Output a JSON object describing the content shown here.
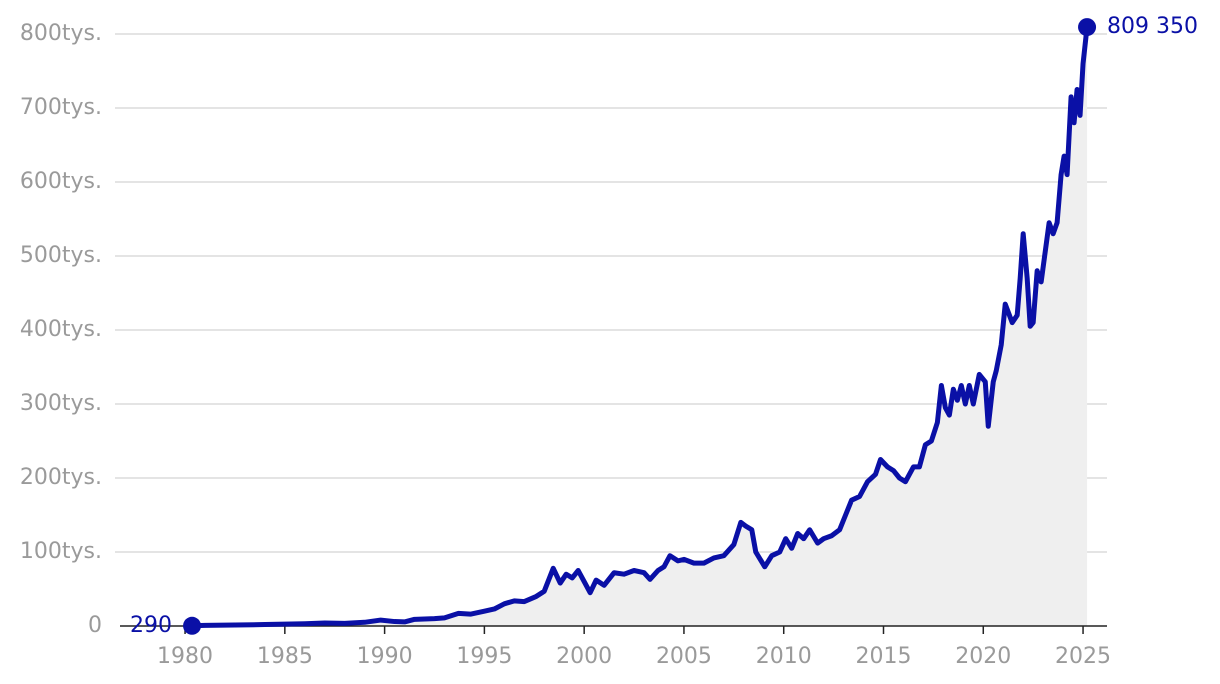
{
  "chart_data": {
    "type": "area-line",
    "color": "#0a10a6",
    "fill": "#efefef",
    "grid": true,
    "xlim": [
      1976.74,
      2026.2
    ],
    "ylim": [
      0,
      820000
    ],
    "xticks": [
      1980,
      1985,
      1990,
      1995,
      2000,
      2005,
      2010,
      2015,
      2020,
      2025
    ],
    "yticks": [
      0,
      {
        "value": 100000,
        "label": "100tys."
      },
      {
        "value": 200000,
        "label": "200tys."
      },
      {
        "value": 300000,
        "label": "300tys."
      },
      {
        "value": 400000,
        "label": "400tys."
      },
      {
        "value": 500000,
        "label": "500tys."
      },
      {
        "value": 600000,
        "label": "600tys."
      },
      {
        "value": 700000,
        "label": "700tys."
      },
      {
        "value": 800000,
        "label": "800tys."
      }
    ],
    "x": [
      1980.35,
      1981,
      1982,
      1983,
      1984,
      1985,
      1986,
      1987,
      1988,
      1989,
      1989.8,
      1990.5,
      1991,
      1991.5,
      1992.5,
      1993,
      1993.7,
      1994.3,
      1995,
      1995.5,
      1996,
      1996.5,
      1997,
      1997.6,
      1998,
      1998.45,
      1998.8,
      1999.1,
      1999.4,
      1999.7,
      2000,
      2000.3,
      2000.6,
      2001,
      2001.5,
      2002,
      2002.5,
      2003,
      2003.3,
      2003.7,
      2004,
      2004.3,
      2004.7,
      2005,
      2005.5,
      2006,
      2006.5,
      2007,
      2007.5,
      2007.85,
      2008.1,
      2008.4,
      2008.6,
      2009.05,
      2009.4,
      2009.8,
      2010.1,
      2010.4,
      2010.7,
      2011,
      2011.3,
      2011.7,
      2012,
      2012.4,
      2012.8,
      2013.1,
      2013.4,
      2013.8,
      2014.2,
      2014.6,
      2014.85,
      2015.2,
      2015.5,
      2015.8,
      2016.1,
      2016.5,
      2016.8,
      2017.1,
      2017.4,
      2017.7,
      2017.9,
      2018.1,
      2018.3,
      2018.5,
      2018.7,
      2018.9,
      2019.1,
      2019.3,
      2019.5,
      2019.8,
      2020.1,
      2020.25,
      2020.5,
      2020.65,
      2020.9,
      2021.1,
      2021.45,
      2021.7,
      2021.85,
      2022,
      2022.2,
      2022.35,
      2022.5,
      2022.7,
      2022.9,
      2023.1,
      2023.3,
      2023.5,
      2023.7,
      2023.9,
      2024.05,
      2024.2,
      2024.4,
      2024.55,
      2024.7,
      2024.85,
      2025,
      2025.2
    ],
    "values": [
      290,
      800,
      1200,
      1500,
      2000,
      2500,
      3000,
      4000,
      3500,
      5000,
      8000,
      6000,
      5500,
      9000,
      10000,
      11000,
      17000,
      16000,
      20000,
      23000,
      30000,
      34000,
      33000,
      40000,
      47000,
      78000,
      58000,
      70000,
      65000,
      75000,
      60000,
      45000,
      62000,
      55000,
      72000,
      70000,
      75000,
      72000,
      63000,
      75000,
      80000,
      95000,
      88000,
      90000,
      85000,
      85000,
      92000,
      95000,
      110000,
      140000,
      135000,
      130000,
      100000,
      80000,
      95000,
      100000,
      118000,
      105000,
      125000,
      118000,
      130000,
      112000,
      118000,
      122000,
      130000,
      150000,
      170000,
      175000,
      195000,
      205000,
      225000,
      215000,
      210000,
      200000,
      195000,
      215000,
      215000,
      245000,
      250000,
      275000,
      325000,
      295000,
      285000,
      320000,
      305000,
      325000,
      300000,
      325000,
      300000,
      340000,
      330000,
      270000,
      330000,
      345000,
      380000,
      435000,
      410000,
      420000,
      470000,
      530000,
      470000,
      405000,
      410000,
      480000,
      465000,
      505000,
      545000,
      530000,
      545000,
      610000,
      635000,
      610000,
      715000,
      680000,
      725000,
      690000,
      760000,
      809350
    ],
    "value_labels": [
      "290",
      null,
      null,
      null,
      null,
      null,
      null,
      null,
      null,
      null,
      null,
      null,
      null,
      null,
      null,
      null,
      null,
      null,
      null,
      null,
      null,
      null,
      null,
      null,
      null,
      null,
      null,
      null,
      null,
      null,
      null,
      null,
      null,
      null,
      null,
      null,
      null,
      null,
      null,
      null,
      null,
      null,
      null,
      null,
      null,
      null,
      null,
      null,
      null,
      null,
      null,
      null,
      null,
      null,
      null,
      null,
      null,
      null,
      null,
      null,
      null,
      null,
      null,
      null,
      null,
      null,
      null,
      null,
      null,
      null,
      null,
      null,
      null,
      null,
      null,
      null,
      null,
      null,
      null,
      null,
      null,
      null,
      null,
      null,
      null,
      null,
      null,
      null,
      null,
      null,
      null,
      null,
      null,
      null,
      null,
      null,
      null,
      null,
      null,
      null,
      null,
      null,
      null,
      null,
      null,
      null,
      null,
      null,
      null,
      null,
      null,
      null,
      null,
      null,
      null,
      null,
      null,
      "809 350"
    ]
  }
}
